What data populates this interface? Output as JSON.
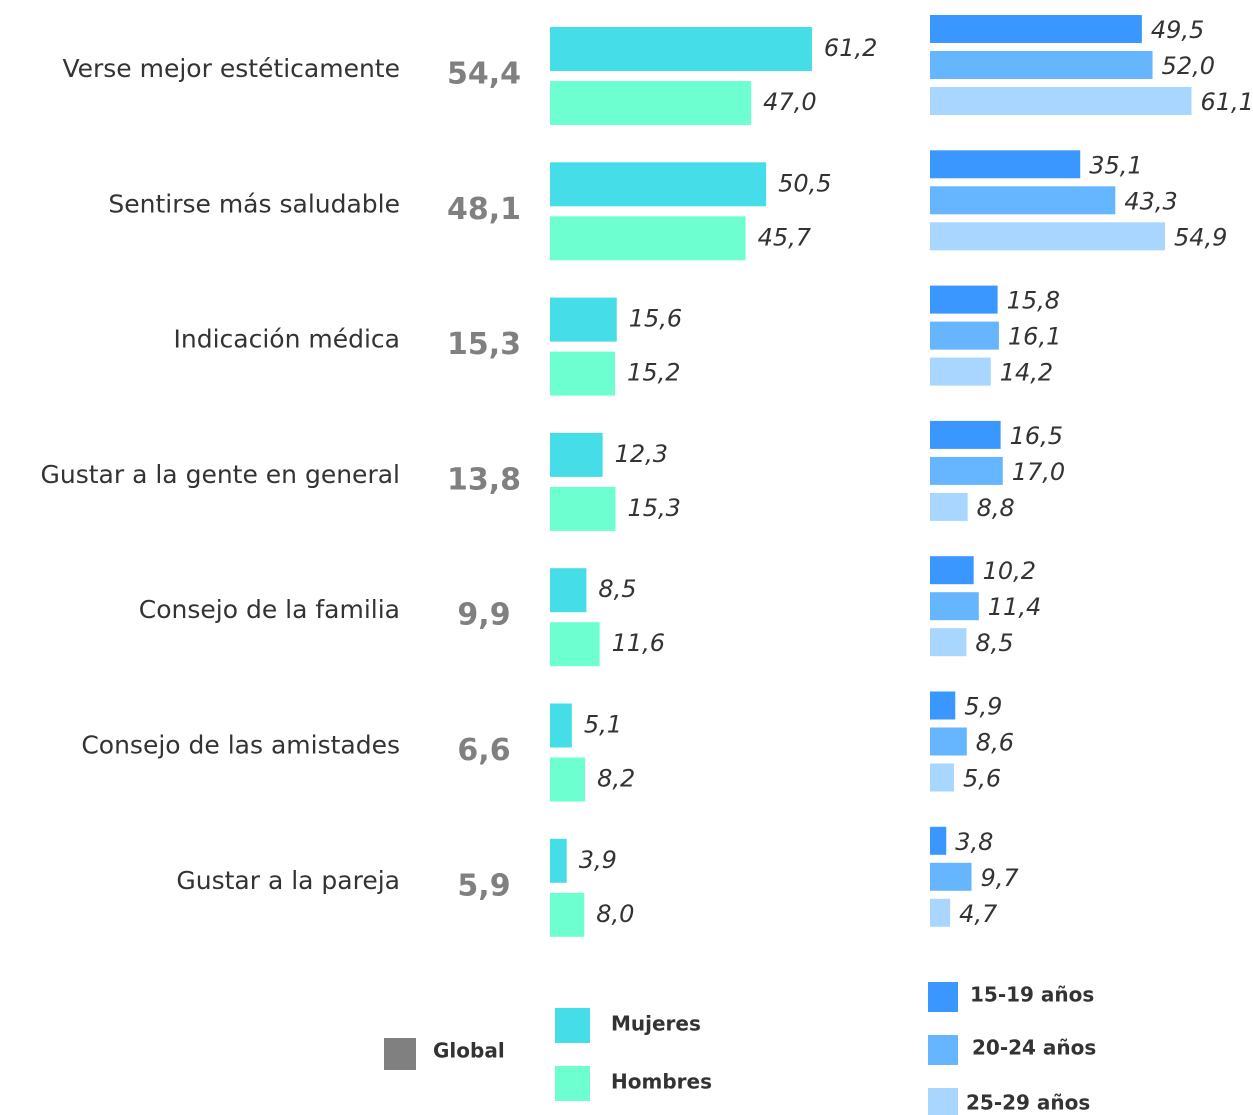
{
  "chart_data": {
    "type": "bar",
    "categories": [
      "Verse mejor estéticamente",
      "Sentirse más saludable",
      "Indicación médica",
      "Gustar a la gente en general",
      "Consejo de la familia",
      "Consejo de las amistades",
      "Gustar a la pareja"
    ],
    "series": [
      {
        "name": "Global",
        "color": "#808080",
        "values": [
          54.4,
          48.1,
          15.3,
          13.8,
          9.9,
          6.6,
          5.9
        ],
        "value_labels": [
          "54,4",
          "48,1",
          "15,3",
          "13,8",
          "9,9",
          "6,6",
          "5,9"
        ]
      },
      {
        "name": "Mujeres",
        "color": "#45dde8",
        "values": [
          61.2,
          50.5,
          15.6,
          12.3,
          8.5,
          5.1,
          3.9
        ],
        "value_labels": [
          "61,2",
          "50,5",
          "15,6",
          "12,3",
          "8,5",
          "5,1",
          "3,9"
        ]
      },
      {
        "name": "Hombres",
        "color": "#6effd0",
        "values": [
          47.0,
          45.7,
          15.2,
          15.3,
          11.6,
          8.2,
          8.0
        ],
        "value_labels": [
          "47,0",
          "45,7",
          "15,2",
          "15,3",
          "11,6",
          "8,2",
          "8,0"
        ]
      },
      {
        "name": "15-19 años",
        "color": "#3a97ff",
        "values": [
          49.5,
          35.1,
          15.8,
          16.5,
          10.2,
          5.9,
          3.8
        ],
        "value_labels": [
          "49,5",
          "35,1",
          "15,8",
          "16,5",
          "10,2",
          "5,9",
          "3,8"
        ]
      },
      {
        "name": "20-24 años",
        "color": "#66b5ff",
        "values": [
          52.0,
          43.3,
          16.1,
          17.0,
          11.4,
          8.6,
          9.7
        ],
        "value_labels": [
          "52,0",
          "43,3",
          "16,1",
          "17,0",
          "11,4",
          "8,6",
          "9,7"
        ]
      },
      {
        "name": "25-29 años",
        "color": "#a8d6ff",
        "values": [
          61.1,
          54.9,
          14.2,
          8.8,
          8.5,
          5.6,
          4.7
        ],
        "value_labels": [
          "61,1",
          "54,9",
          "14,2",
          "8,8",
          "8,5",
          "5,6",
          "4,7"
        ]
      }
    ]
  }
}
